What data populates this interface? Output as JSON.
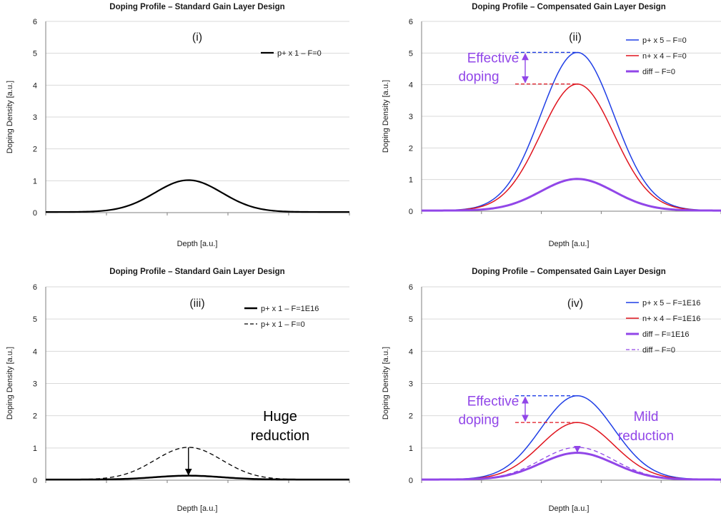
{
  "colors": {
    "blue": "#1f3ee6",
    "red": "#e0141e",
    "purple": "#9146e8",
    "black": "#000000",
    "grid": "#d9d9d9",
    "axis": "#7f7f7f"
  },
  "chart_data": [
    {
      "type": "line",
      "panel": "(i)",
      "title": "Doping Profile – Standard Gain Layer Design",
      "xlabel": "Depth [a.u.]",
      "ylabel": "Doping Density [a.u.]",
      "ylim": [
        0,
        6
      ],
      "yticks": [
        "0",
        "1",
        "2",
        "3",
        "4",
        "5",
        "6"
      ],
      "xlim": [
        0,
        10
      ],
      "grid": true,
      "legend": "top-right",
      "series": [
        {
          "name": "p+ x 1 – F=0",
          "peak": 1.0,
          "center": 4.7,
          "sigma": 1.1,
          "color": "black",
          "width": 2.2,
          "dashed": false
        }
      ],
      "annotations": []
    },
    {
      "type": "line",
      "panel": "(ii)",
      "title": "Doping Profile – Compensated Gain Layer Design",
      "xlabel": "Depth [a.u.]",
      "ylabel": "Doping Density [a.u.]",
      "ylim": [
        0,
        6
      ],
      "yticks": [
        "0",
        "1",
        "2",
        "3",
        "4",
        "5",
        "6"
      ],
      "xlim": [
        0,
        10
      ],
      "grid": true,
      "legend": "top-right",
      "series": [
        {
          "name": "p+ x 5 – F=0",
          "peak": 5.0,
          "center": 5.2,
          "sigma": 1.22,
          "color": "blue",
          "width": 1.5,
          "dashed": false
        },
        {
          "name": "n+ x 4 – F=0",
          "peak": 4.0,
          "center": 5.2,
          "sigma": 1.22,
          "color": "red",
          "width": 1.5,
          "dashed": false
        },
        {
          "name": "diff – F=0",
          "peak": 1.0,
          "center": 5.2,
          "sigma": 1.22,
          "color": "purple",
          "width": 3,
          "dashed": false
        }
      ],
      "annotations": [
        {
          "type": "effective-doping",
          "top": 5.0,
          "bottom": 4.0,
          "text1": "Effective",
          "text2": "doping"
        }
      ]
    },
    {
      "type": "line",
      "panel": "(iii)",
      "title": "Doping Profile – Standard Gain Layer Design",
      "xlabel": "Depth [a.u.]",
      "ylabel": "Doping Density [a.u.]",
      "ylim": [
        0,
        6
      ],
      "yticks": [
        "0",
        "1",
        "2",
        "3",
        "4",
        "5",
        "6"
      ],
      "xlim": [
        0,
        10
      ],
      "grid": true,
      "legend": "top-right",
      "series": [
        {
          "name": "p+ x 1 – F=1E16",
          "peak": 0.12,
          "center": 4.7,
          "sigma": 1.1,
          "color": "black",
          "width": 2.5,
          "dashed": false
        },
        {
          "name": "p+ x 1 – F=0",
          "peak": 1.0,
          "center": 4.7,
          "sigma": 1.1,
          "color": "black",
          "width": 1.3,
          "dashed": true
        }
      ],
      "annotations": [
        {
          "type": "reduction-arrow",
          "from": 1.0,
          "to": 0.12
        },
        {
          "type": "note",
          "text1": "Huge",
          "text2": "reduction"
        }
      ]
    },
    {
      "type": "line",
      "panel": "(iv)",
      "title": "Doping Profile – Compensated Gain Layer Design",
      "xlabel": "Depth [a.u.]",
      "ylabel": "Doping Density [a.u.]",
      "ylim": [
        0,
        6
      ],
      "yticks": [
        "0",
        "1",
        "2",
        "3",
        "4",
        "5",
        "6"
      ],
      "xlim": [
        0,
        10
      ],
      "grid": true,
      "legend": "top-right",
      "series": [
        {
          "name": "p+ x 5 – F=1E16",
          "peak": 2.6,
          "center": 5.2,
          "sigma": 1.22,
          "color": "blue",
          "width": 1.5,
          "dashed": false
        },
        {
          "name": "n+ x 4 – F=1E16",
          "peak": 1.77,
          "center": 5.2,
          "sigma": 1.22,
          "color": "red",
          "width": 1.5,
          "dashed": false
        },
        {
          "name": "diff – F=1E16",
          "peak": 0.83,
          "center": 5.2,
          "sigma": 1.22,
          "color": "purple",
          "width": 3,
          "dashed": false
        },
        {
          "name": "diff – F=0",
          "peak": 1.0,
          "center": 5.2,
          "sigma": 1.22,
          "color": "purple",
          "width": 1.3,
          "dashed": true
        }
      ],
      "annotations": [
        {
          "type": "effective-doping",
          "top": 2.6,
          "bottom": 1.77,
          "text1": "Effective",
          "text2": "doping"
        },
        {
          "type": "reduction-arrow",
          "from": 1.0,
          "to": 0.83
        },
        {
          "type": "note",
          "text1": "Mild",
          "text2": "reduction"
        }
      ]
    }
  ]
}
